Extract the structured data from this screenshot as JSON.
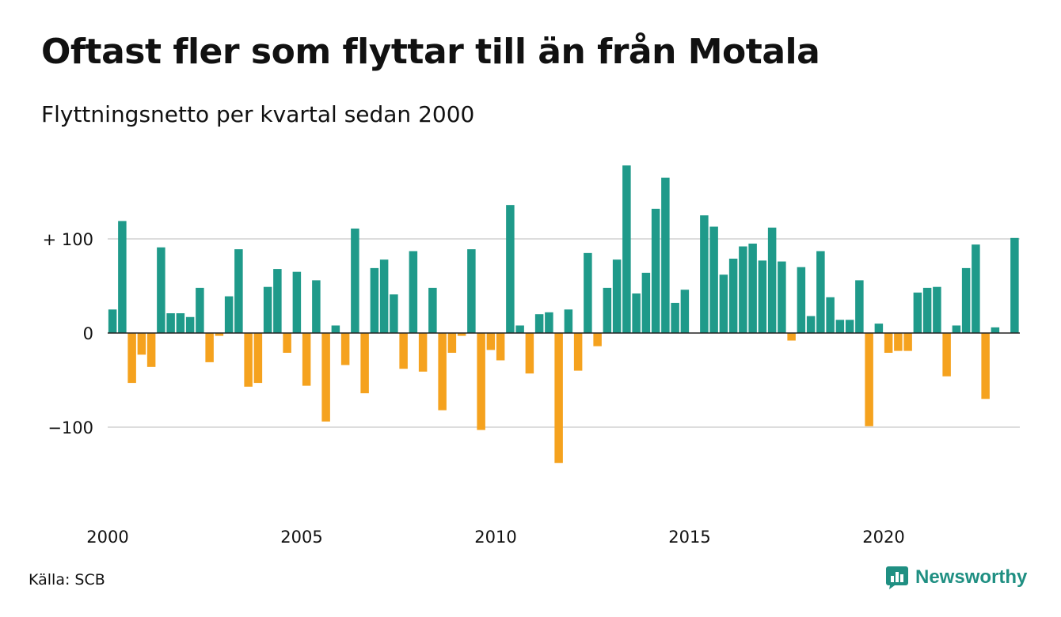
{
  "title": "Oftast fler som flyttar till än från Motala",
  "subtitle": "Flyttningsnetto per kvartal sedan 2000",
  "source": "Källa: SCB",
  "brand": {
    "name": "Newsworthy"
  },
  "colors": {
    "positive": "#1f9a8a",
    "negative": "#f5a21e",
    "grid": "#dddddd",
    "zero": "#222222",
    "brand": "#1f8f82"
  },
  "chart_data": {
    "type": "bar",
    "title": "Oftast fler som flyttar till än från Motala",
    "subtitle": "Flyttningsnetto per kvartal sedan 2000",
    "xlabel": "",
    "ylabel": "",
    "ylim": [
      -170,
      185
    ],
    "grid": true,
    "y_ticks": [
      {
        "value": 100,
        "label": "+ 100"
      },
      {
        "value": 0,
        "label": "0"
      },
      {
        "value": -100,
        "label": "−100"
      }
    ],
    "x_ticks": [
      {
        "year": 2000,
        "label": "2000"
      },
      {
        "year": 2005,
        "label": "2005"
      },
      {
        "year": 2010,
        "label": "2010"
      },
      {
        "year": 2015,
        "label": "2015"
      },
      {
        "year": 2020,
        "label": "2020"
      }
    ],
    "start": "2000 Q1",
    "values": [
      25,
      119,
      -53,
      -23,
      -36,
      91,
      21,
      21,
      17,
      48,
      -31,
      -3,
      39,
      89,
      -57,
      -53,
      49,
      68,
      -21,
      65,
      -56,
      56,
      -94,
      8,
      -34,
      111,
      -64,
      69,
      78,
      41,
      -38,
      87,
      -41,
      48,
      -82,
      -21,
      -3,
      89,
      -103,
      -18,
      -29,
      136,
      8,
      -43,
      20,
      22,
      -138,
      25,
      -40,
      85,
      -14,
      48,
      78,
      178,
      42,
      64,
      132,
      165,
      32,
      46,
      0,
      125,
      113,
      62,
      79,
      92,
      95,
      77,
      112,
      76,
      -8,
      70,
      18,
      87,
      38,
      14,
      14,
      56,
      -99,
      10,
      -21,
      -19,
      -19,
      43,
      48,
      49,
      -46,
      8,
      69,
      94,
      -70,
      6,
      0,
      101
    ]
  }
}
